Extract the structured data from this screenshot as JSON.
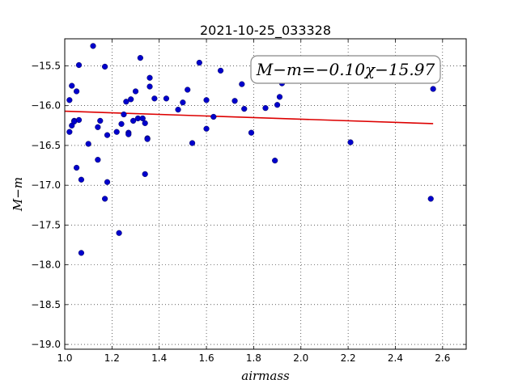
{
  "chart_data": {
    "type": "scatter",
    "title": "2021-10-25_033328",
    "xlabel": "airmass",
    "ylabel": "M−m",
    "xlim": [
      1.0,
      2.7
    ],
    "ylim": [
      -19.06,
      -15.16
    ],
    "x_ticks": [
      "1.0",
      "1.2",
      "1.4",
      "1.6",
      "1.8",
      "2.0",
      "2.2",
      "2.4",
      "2.6"
    ],
    "y_ticks": [
      "−15.5",
      "−16.0",
      "−16.5",
      "−17.0",
      "−17.5",
      "−18.0",
      "−18.5",
      "−19.0"
    ],
    "grid": true,
    "annotation": "M−m=−0.10χ−15.97",
    "colors": {
      "points": "#0000cc",
      "fit_line": "#dd0000",
      "annotation_border": "#888888"
    },
    "fit_line": {
      "slope": -0.1,
      "intercept": -15.97,
      "x_range": [
        1.0,
        2.56
      ]
    },
    "series": [
      {
        "x": [
          1.02,
          1.02,
          1.03,
          1.03,
          1.04,
          1.04,
          1.05,
          1.05,
          1.06,
          1.06,
          1.07,
          1.07,
          1.1,
          1.12,
          1.14,
          1.14,
          1.15,
          1.17,
          1.17,
          1.18,
          1.18,
          1.22,
          1.23,
          1.24,
          1.25,
          1.26,
          1.27,
          1.27,
          1.28,
          1.29,
          1.3,
          1.31,
          1.32,
          1.33,
          1.34,
          1.34,
          1.35,
          1.35,
          1.36,
          1.36,
          1.38,
          1.43,
          1.48,
          1.5,
          1.52,
          1.54,
          1.57,
          1.6,
          1.6,
          1.63,
          1.66,
          1.72,
          1.75,
          1.76,
          1.79,
          1.85,
          1.89,
          1.9,
          1.91,
          1.92,
          2.21,
          2.55,
          2.56
        ],
        "y": [
          -16.33,
          -15.93,
          -15.75,
          -16.25,
          -16.19,
          -16.2,
          -15.82,
          -16.78,
          -16.18,
          -15.49,
          -17.85,
          -16.93,
          -16.48,
          -15.25,
          -16.27,
          -16.68,
          -16.19,
          -17.17,
          -15.51,
          -16.37,
          -16.96,
          -16.33,
          -17.6,
          -16.23,
          -16.11,
          -15.95,
          -16.34,
          -16.36,
          -15.92,
          -16.19,
          -15.82,
          -16.16,
          -15.4,
          -16.16,
          -16.22,
          -16.86,
          -16.41,
          -16.42,
          -15.76,
          -15.65,
          -15.91,
          -15.91,
          -16.05,
          -15.96,
          -15.8,
          -16.47,
          -15.46,
          -16.29,
          -15.93,
          -16.14,
          -15.56,
          -15.94,
          -15.73,
          -16.04,
          -16.34,
          -16.03,
          -16.69,
          -15.99,
          -15.89,
          -15.72,
          -16.46,
          -17.17,
          -15.79
        ]
      }
    ]
  }
}
